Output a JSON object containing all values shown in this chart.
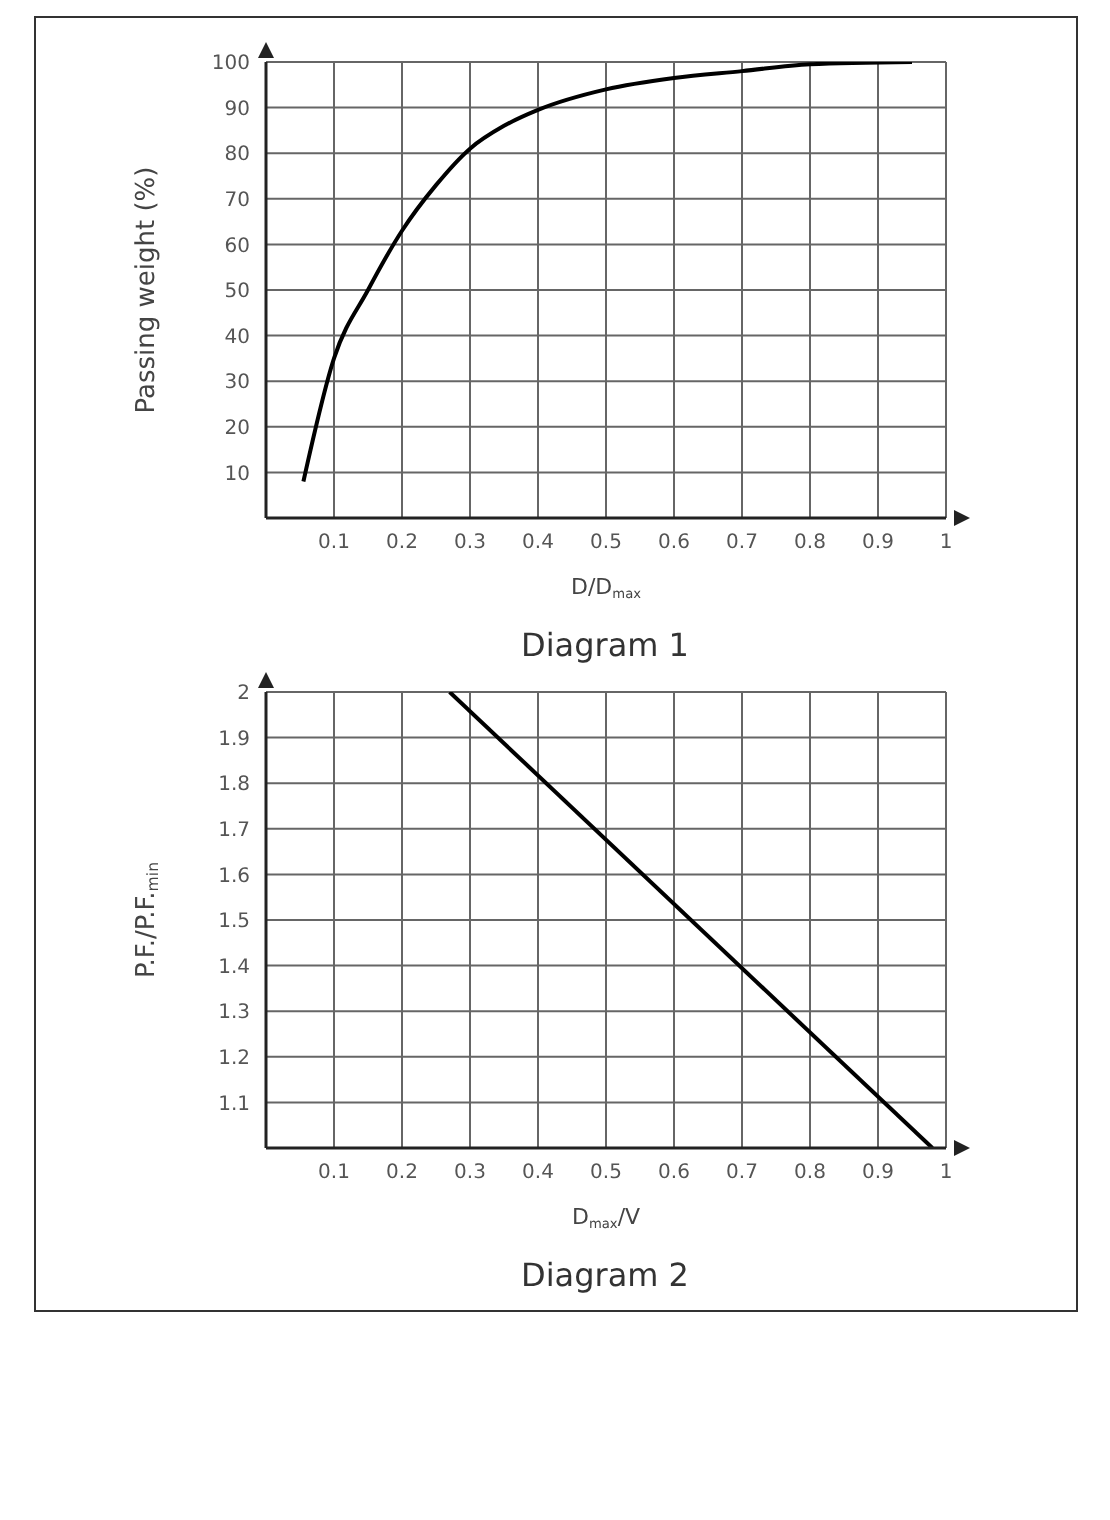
{
  "chart_data": [
    {
      "type": "line",
      "title": "Diagram 1",
      "xlabel": "D/D$_{max}$",
      "ylabel": "Passing weight (%)",
      "color": "#000000",
      "x": [
        0.055,
        0.1,
        0.15,
        0.2,
        0.25,
        0.3,
        0.35,
        0.4,
        0.5,
        0.6,
        0.7,
        0.8,
        0.95
      ],
      "values": [
        8,
        35,
        50,
        63,
        73,
        81,
        86,
        89.5,
        94,
        96.5,
        98,
        99.5,
        100
      ],
      "xlim": [
        0,
        1
      ],
      "ylim": [
        0,
        100
      ],
      "xticks": [
        0.1,
        0.2,
        0.3,
        0.4,
        0.5,
        0.6,
        0.7,
        0.8,
        0.9,
        1
      ],
      "yticks": [
        10,
        20,
        30,
        40,
        50,
        60,
        70,
        80,
        90,
        100
      ],
      "grid": true,
      "marker": "none",
      "line_style": "solid"
    },
    {
      "type": "line",
      "title": "Diagram 2",
      "xlabel": "D$_{max}$/V",
      "ylabel": "P.F./P.F.$_{min}$",
      "color": "#000000",
      "x": [
        0.27,
        0.98
      ],
      "values": [
        2,
        1
      ],
      "xlim": [
        0,
        1
      ],
      "ylim": [
        1,
        2
      ],
      "xticks": [
        0.1,
        0.2,
        0.3,
        0.4,
        0.5,
        0.6,
        0.7,
        0.8,
        0.9,
        1
      ],
      "yticks": [
        1.1,
        1.2,
        1.3,
        1.4,
        1.5,
        1.6,
        1.7,
        1.8,
        1.9,
        2
      ],
      "grid": true,
      "marker": "none",
      "line_style": "solid"
    }
  ]
}
